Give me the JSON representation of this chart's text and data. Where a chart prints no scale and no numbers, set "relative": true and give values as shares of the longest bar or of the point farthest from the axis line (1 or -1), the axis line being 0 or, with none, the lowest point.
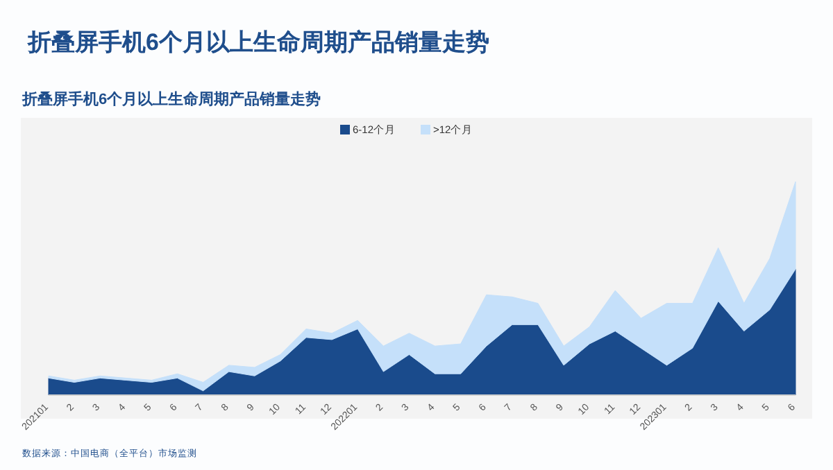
{
  "chart_data": {
    "type": "area",
    "title": "折叠屏手机6个月以上生命周期产品销量走势",
    "subtitle": "折叠屏手机6个月以上生命周期产品销量走势",
    "annotations": [
      "数据来源：中国电商（全平台）市场监测"
    ],
    "categories": [
      "202101",
      "2",
      "3",
      "4",
      "5",
      "6",
      "7",
      "8",
      "9",
      "10",
      "11",
      "12",
      "202201",
      "2",
      "3",
      "4",
      "5",
      "6",
      "7",
      "8",
      "9",
      "10",
      "11",
      "12",
      "202301",
      "2",
      "3",
      "4",
      "5",
      "6"
    ],
    "relative": true,
    "stacked": true,
    "legend": "top",
    "series": [
      {
        "name": "6-12个月",
        "color": "#1a4b8c",
        "values": [
          0.08,
          0.06,
          0.08,
          0.07,
          0.06,
          0.08,
          0.02,
          0.11,
          0.09,
          0.16,
          0.27,
          0.26,
          0.31,
          0.11,
          0.19,
          0.1,
          0.1,
          0.23,
          0.33,
          0.33,
          0.14,
          0.24,
          0.3,
          0.22,
          0.14,
          0.22,
          0.44,
          0.3,
          0.4,
          0.59
        ]
      },
      {
        "name": ">12个月",
        "color": "#c5e0fa",
        "values": [
          0.01,
          0.01,
          0.01,
          0.01,
          0.01,
          0.02,
          0.04,
          0.03,
          0.04,
          0.03,
          0.04,
          0.03,
          0.04,
          0.12,
          0.1,
          0.13,
          0.14,
          0.24,
          0.13,
          0.1,
          0.09,
          0.08,
          0.19,
          0.14,
          0.29,
          0.21,
          0.25,
          0.13,
          0.24,
          0.41
        ]
      }
    ]
  }
}
